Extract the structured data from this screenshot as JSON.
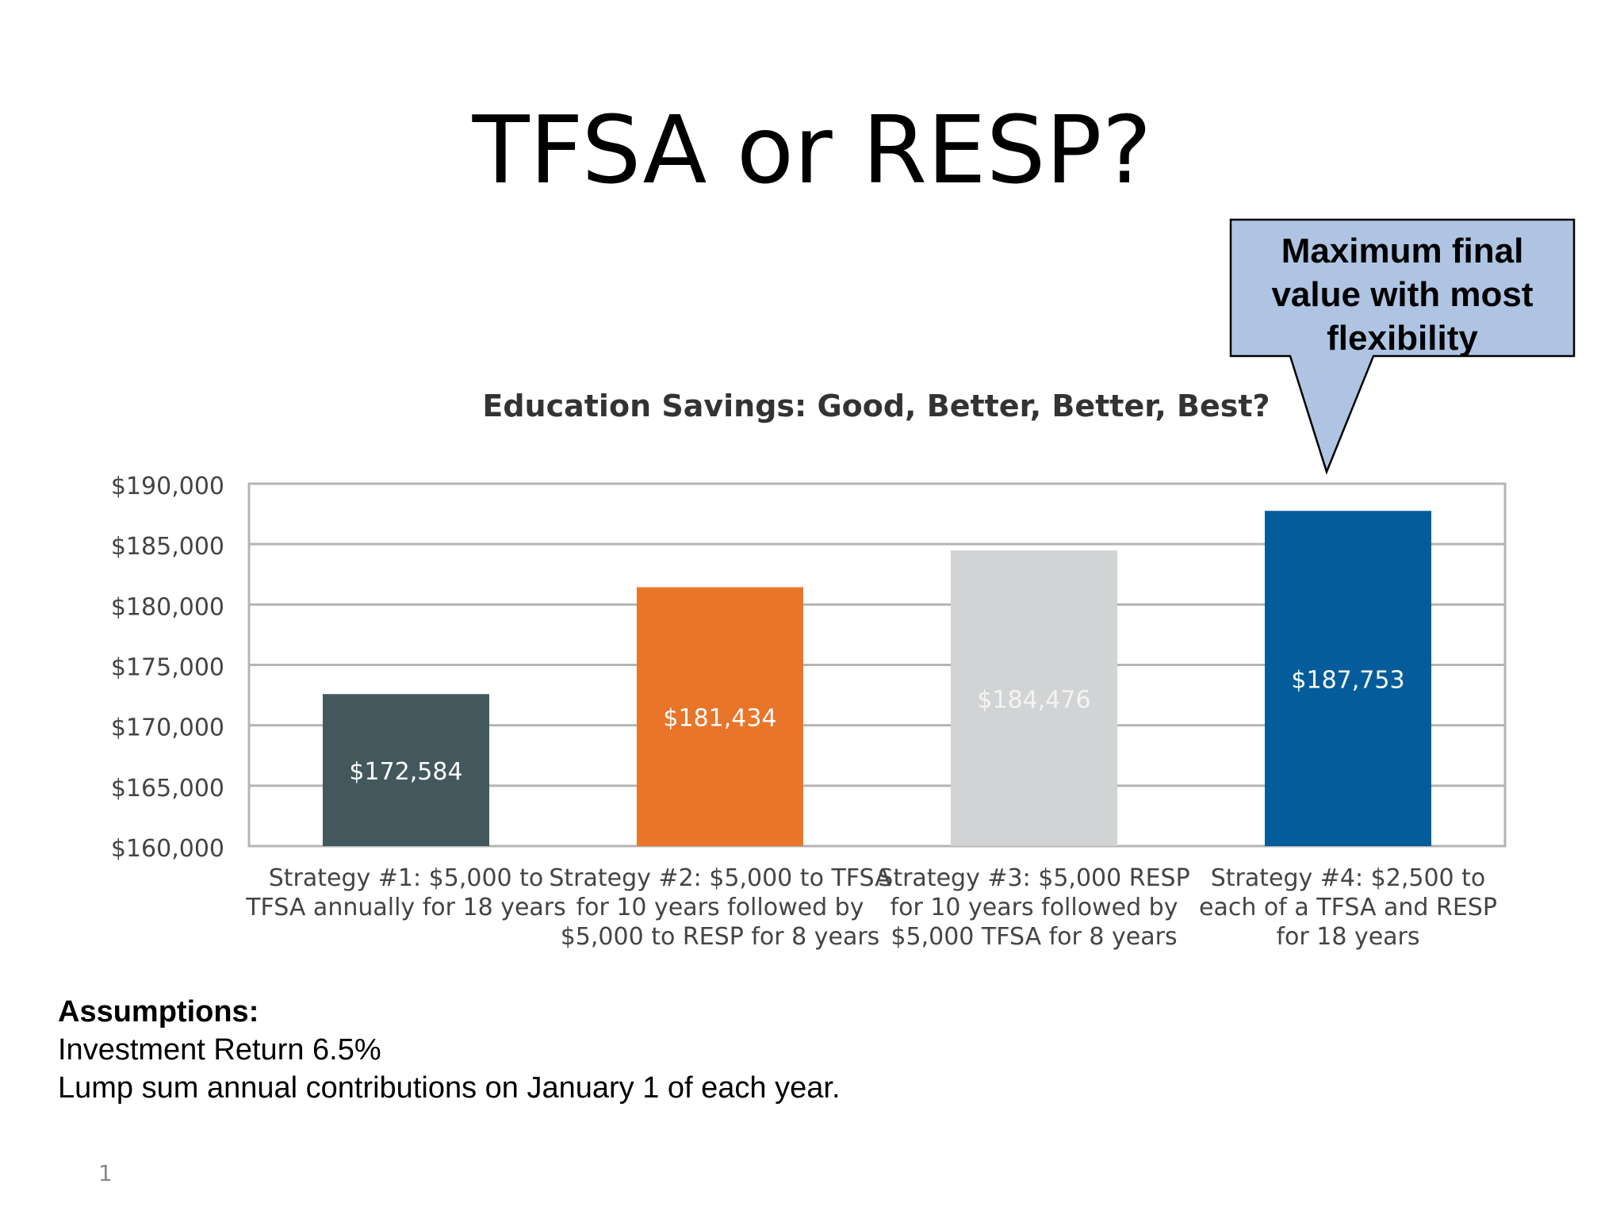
{
  "slide": {
    "title": "TFSA or RESP?",
    "number": "1"
  },
  "callout": {
    "text_lines": [
      "Maximum final",
      "value with most",
      "flexibility"
    ],
    "fill_color": "#aec4e2",
    "target_category_index": 3
  },
  "assumptions": {
    "heading": "Assumptions:",
    "lines": [
      "Investment Return 6.5%",
      "Lump sum annual contributions on January 1 of each year."
    ]
  },
  "chart_data": {
    "type": "bar",
    "title": "Education Savings: Good, Better, Better, Best?",
    "xlabel": "",
    "ylabel": "",
    "ylim": [
      160000,
      190000
    ],
    "yticks": [
      160000,
      165000,
      170000,
      175000,
      180000,
      185000,
      190000
    ],
    "ytick_labels": [
      "$160,000",
      "$165,000",
      "$170,000",
      "$175,000",
      "$180,000",
      "$185,000",
      "$190,000"
    ],
    "grid": true,
    "legend": "none",
    "categories": [
      [
        "Strategy #1: $5,000 to",
        "TFSA annually for 18 years"
      ],
      [
        "Strategy #2: $5,000 to TFSA",
        "for 10 years followed by",
        "$5,000 to RESP for 8 years"
      ],
      [
        "Strategy #3: $5,000 RESP",
        "for 10 years followed by",
        "$5,000 TFSA for 8 years"
      ],
      [
        "Strategy #4: $2,500 to",
        "each of a TFSA and RESP",
        "for 18 years"
      ]
    ],
    "values": [
      172584,
      181434,
      184476,
      187753
    ],
    "data_labels": [
      "$172,584",
      "$181,434",
      "$184,476",
      "$187,753"
    ],
    "colors": [
      "#42585c",
      "#e8752a",
      "#d1d3d5",
      "#045d9a"
    ],
    "label_colors": [
      "#ffffff",
      "#ffffff",
      "#f4f4f4",
      "#ffffff"
    ]
  }
}
